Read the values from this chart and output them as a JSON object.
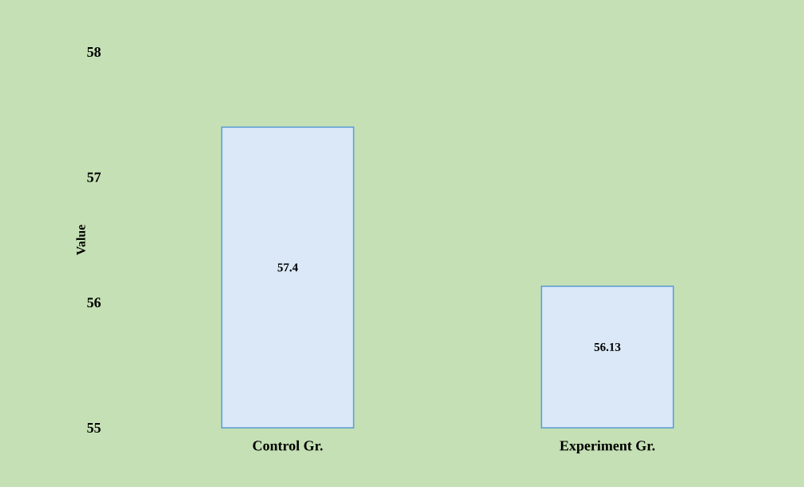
{
  "chart_data": {
    "type": "bar",
    "ylabel": "Value",
    "categories": [
      "Control Gr.",
      "Experiment Gr."
    ],
    "values": [
      57.4,
      56.13
    ],
    "color": "#dae8f7",
    "ylim": [
      55,
      58
    ],
    "yticks": [
      55,
      56,
      57,
      58
    ],
    "data_labels": true
  }
}
